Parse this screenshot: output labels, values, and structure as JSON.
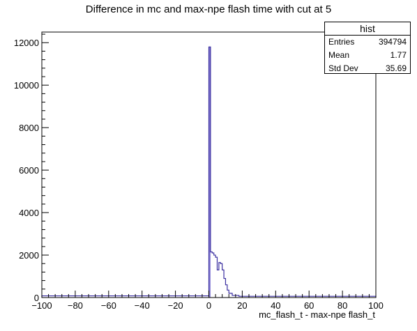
{
  "chart_data": {
    "type": "histogram",
    "title": "Difference in mc and max-npe flash time  with cut at 5",
    "xlabel": "mc_flash_t - max-npe flash_t",
    "ylabel": "",
    "xlim": [
      -100,
      100
    ],
    "ylim": [
      0,
      12500
    ],
    "xticks": [
      -100,
      -80,
      -60,
      -40,
      -20,
      0,
      20,
      40,
      60,
      80,
      100
    ],
    "xtick_labels": [
      "−100",
      "−80",
      "−60",
      "−40",
      "−20",
      "0",
      "20",
      "40",
      "60",
      "80",
      "100"
    ],
    "yticks": [
      0,
      2000,
      4000,
      6000,
      8000,
      10000,
      12000
    ],
    "ytick_labels": [
      "0",
      "2000",
      "4000",
      "6000",
      "8000",
      "10000",
      "12000"
    ],
    "line_color": "#3a2fa0",
    "fill_color": "#8a80d6",
    "bins": [
      {
        "x0": -100,
        "x1": 0,
        "y": 80
      },
      {
        "x0": 0,
        "x1": 1,
        "y": 11800
      },
      {
        "x0": 1,
        "x1": 2,
        "y": 2150
      },
      {
        "x0": 2,
        "x1": 3,
        "y": 2100
      },
      {
        "x0": 3,
        "x1": 4,
        "y": 2000
      },
      {
        "x0": 4,
        "x1": 5,
        "y": 1900
      },
      {
        "x0": 5,
        "x1": 6,
        "y": 1300
      },
      {
        "x0": 6,
        "x1": 7,
        "y": 1650
      },
      {
        "x0": 7,
        "x1": 8,
        "y": 1600
      },
      {
        "x0": 8,
        "x1": 9,
        "y": 1300
      },
      {
        "x0": 9,
        "x1": 10,
        "y": 900
      },
      {
        "x0": 10,
        "x1": 11,
        "y": 600
      },
      {
        "x0": 11,
        "x1": 12,
        "y": 350
      },
      {
        "x0": 12,
        "x1": 14,
        "y": 200
      },
      {
        "x0": 14,
        "x1": 18,
        "y": 100
      },
      {
        "x0": 18,
        "x1": 100,
        "y": 60
      }
    ]
  },
  "stats": {
    "title": "hist",
    "rows": [
      {
        "label": "Entries",
        "value": "394794"
      },
      {
        "label": "Mean",
        "value": "1.77"
      },
      {
        "label": "Std Dev",
        "value": "35.69"
      }
    ]
  }
}
